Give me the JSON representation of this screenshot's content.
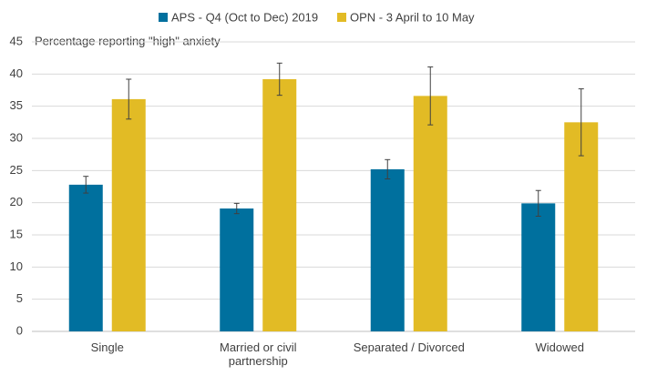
{
  "chart_data": {
    "type": "bar",
    "y_axis_label": "Percentage reporting \"high\" anxiety",
    "categories": [
      "Single",
      "Married or civil partnership",
      "Separated / Divorced",
      "Widowed"
    ],
    "series": [
      {
        "name": "APS - Q4 (Oct to Dec) 2019",
        "color": "#00709e",
        "values": [
          22.8,
          19.1,
          25.2,
          19.9
        ],
        "errors": [
          1.3,
          0.8,
          1.5,
          2.0
        ]
      },
      {
        "name": "OPN - 3 April to 10 May",
        "color": "#e2bb25",
        "values": [
          36.1,
          39.2,
          36.6,
          32.5
        ],
        "errors": [
          3.1,
          2.5,
          4.5,
          5.2
        ]
      }
    ],
    "ylim": [
      0,
      45
    ],
    "yticks": [
      0,
      5,
      10,
      15,
      20,
      25,
      30,
      35,
      40,
      45
    ],
    "grid": true,
    "legend": "top"
  }
}
